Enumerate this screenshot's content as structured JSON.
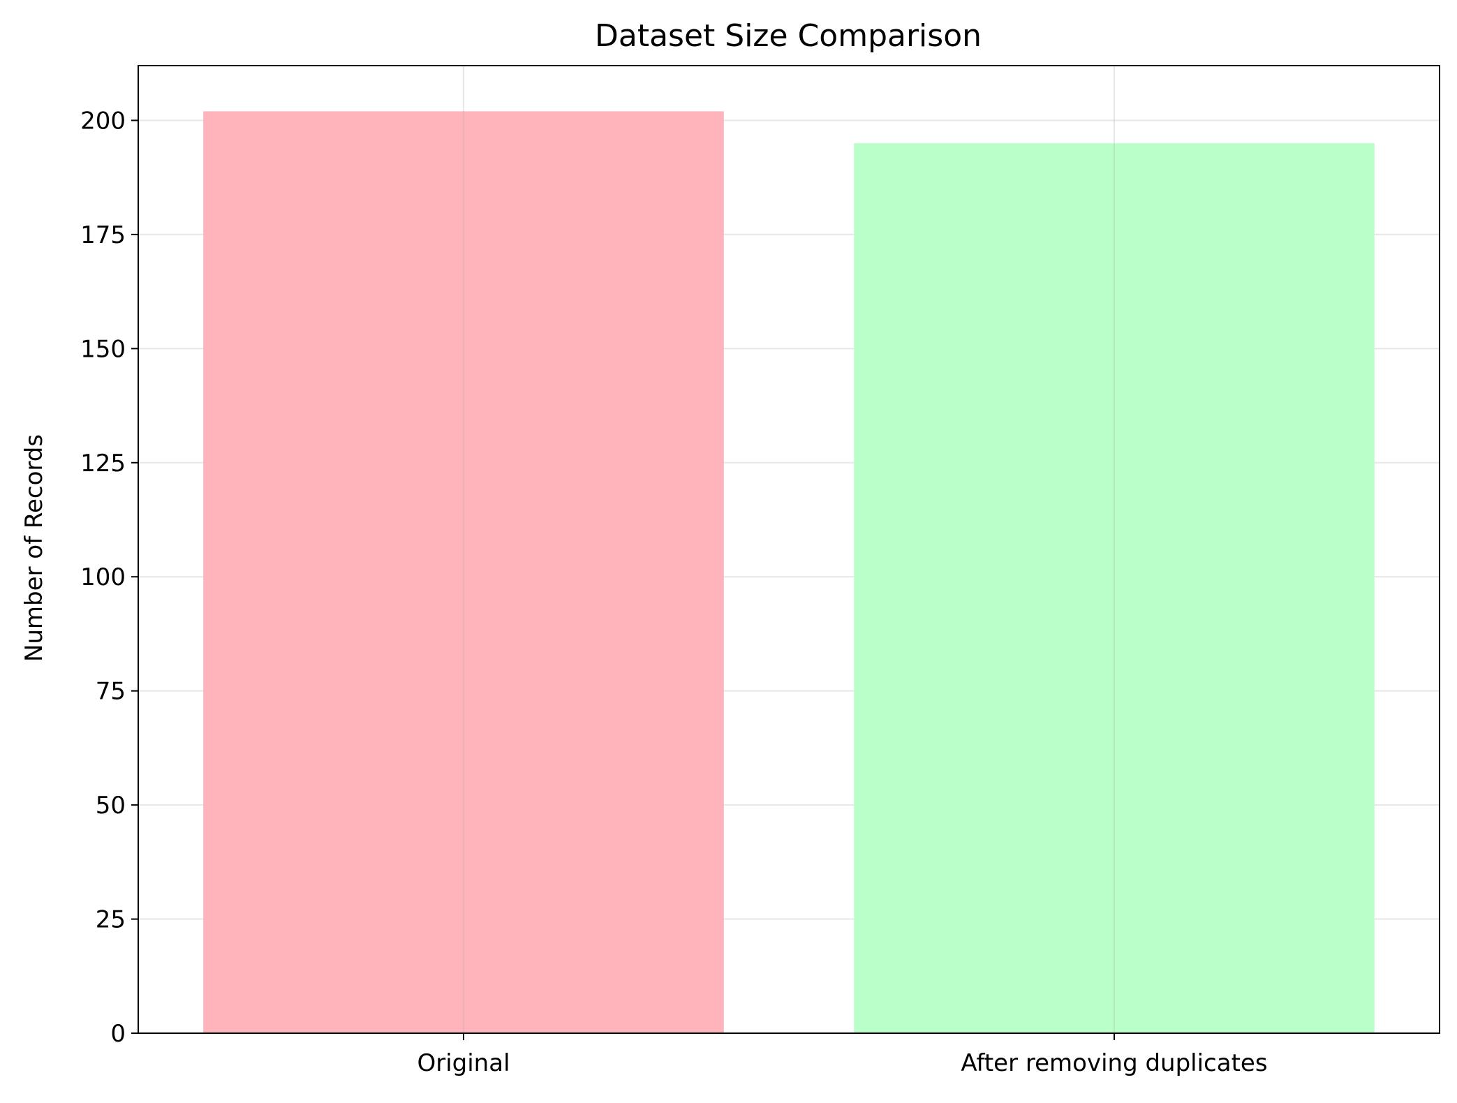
{
  "chart_data": {
    "type": "bar",
    "title": "Dataset Size Comparison",
    "xlabel": "",
    "ylabel": "Number of Records",
    "categories": [
      "Original",
      "After removing duplicates"
    ],
    "values": [
      202,
      195
    ],
    "colors": [
      "#ffb3ba",
      "#baffc9"
    ],
    "ylim": [
      0,
      212
    ],
    "yticks": [
      0,
      25,
      50,
      75,
      100,
      125,
      150,
      175,
      200
    ],
    "grid": true
  }
}
